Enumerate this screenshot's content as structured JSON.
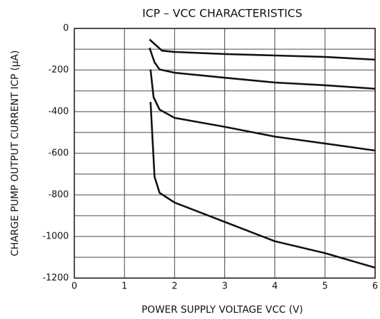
{
  "chart_data": {
    "type": "line",
    "title": "ICP – VCC  CHARACTERISTICS",
    "x_label": "POWER SUPPLY VOLTAGE   VCC   (V)",
    "y_label": "CHARGE PUMP OUTPUT CURRENT   ICP   (μA)",
    "xlim": [
      0,
      6
    ],
    "xticks": [
      0,
      1,
      2,
      3,
      4,
      5,
      6
    ],
    "ylim": [
      -1200,
      0
    ],
    "yticks": [
      0,
      -200,
      -400,
      -600,
      -800,
      -1000,
      -1200
    ],
    "yminorticks": [
      -100,
      -300,
      -500,
      -700,
      -900,
      -1100
    ],
    "grid": true,
    "series": [
      {
        "color": "#111111",
        "x": [
          1.5,
          1.75,
          2,
          3,
          4,
          5,
          6
        ],
        "values": [
          -53,
          -107,
          -113,
          -123,
          -130,
          -137,
          -150
        ]
      },
      {
        "color": "#111111",
        "x": [
          1.5,
          1.6,
          1.7,
          2,
          3,
          4,
          5,
          6
        ],
        "values": [
          -93,
          -163,
          -197,
          -213,
          -237,
          -260,
          -273,
          -290
        ]
      },
      {
        "color": "#111111",
        "x": [
          1.52,
          1.58,
          1.7,
          2,
          3,
          4,
          5,
          6
        ],
        "values": [
          -197,
          -330,
          -390,
          -430,
          -473,
          -520,
          -553,
          -587
        ]
      },
      {
        "color": "#111111",
        "x": [
          1.52,
          1.6,
          1.7,
          2,
          3,
          4,
          5,
          6
        ],
        "values": [
          -353,
          -713,
          -790,
          -837,
          -930,
          -1023,
          -1080,
          -1150
        ]
      }
    ]
  }
}
